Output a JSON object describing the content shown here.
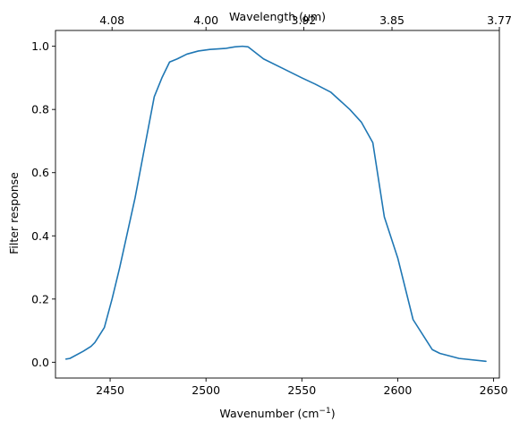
{
  "chart_data": {
    "type": "line",
    "xlabel": "Wavenumber (cm",
    "xlabel_sup": "−1",
    "xlabel_end": ")",
    "ylabel": "Filter response",
    "top_xlabel": "Wavelength (",
    "top_xlabel_mu": "μ",
    "top_xlabel_end": "m)",
    "xlim": [
      2421.5,
      2653
    ],
    "ylim": [
      -0.05,
      1.05
    ],
    "x_ticks": [
      2450,
      2500,
      2550,
      2600,
      2650
    ],
    "x_tick_labels": [
      "2450",
      "2500",
      "2550",
      "2600",
      "2650"
    ],
    "y_ticks": [
      0.0,
      0.2,
      0.4,
      0.6,
      0.8,
      1.0
    ],
    "y_tick_labels": [
      "0.0",
      "0.2",
      "0.4",
      "0.6",
      "0.8",
      "1.0"
    ],
    "top_ticks_wavenumber": [
      2451,
      2500,
      2551,
      2597,
      2653
    ],
    "top_tick_labels": [
      "4.08",
      "4.00",
      "3.92",
      "3.85",
      "3.77"
    ],
    "grid": false,
    "series": [
      {
        "color": "#1f77b4",
        "x": [
          2427,
          2429,
          2436,
          2440,
          2442,
          2447,
          2451,
          2455,
          2463,
          2468,
          2473,
          2477,
          2481,
          2485,
          2490,
          2496,
          2502,
          2510,
          2515,
          2519,
          2522,
          2530,
          2540,
          2550,
          2557,
          2565,
          2575,
          2581,
          2587,
          2593,
          2600,
          2608,
          2618,
          2622,
          2632,
          2646
        ],
        "y": [
          0.01,
          0.012,
          0.035,
          0.05,
          0.062,
          0.11,
          0.2,
          0.3,
          0.52,
          0.68,
          0.84,
          0.9,
          0.95,
          0.96,
          0.975,
          0.985,
          0.99,
          0.993,
          0.998,
          1.0,
          0.998,
          0.96,
          0.93,
          0.9,
          0.88,
          0.855,
          0.8,
          0.76,
          0.695,
          0.46,
          0.33,
          0.135,
          0.04,
          0.028,
          0.012,
          0.003
        ]
      }
    ]
  }
}
